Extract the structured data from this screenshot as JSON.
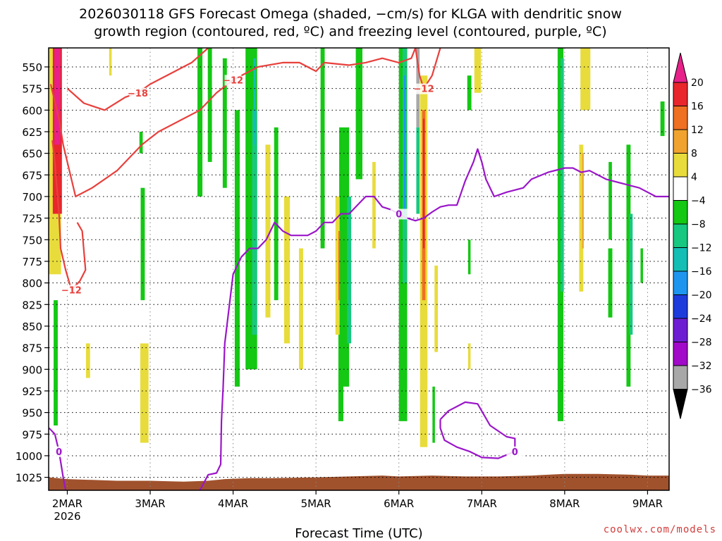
{
  "chart_data": {
    "type": "heatmap",
    "title_line1": "2026030118 GFS Forecast Omega (shaded, −cm/s) for KLGA with dendritic snow",
    "title_line2": "growth region (contoured, red, ºC) and freezing level (contoured, purple, ºC)",
    "xlabel": "Forecast Time (UTC)",
    "watermark": "coolwx.com/models",
    "x_ticks": [
      {
        "label": "2MAR",
        "sublabel": "2026",
        "day": 0
      },
      {
        "label": "3MAR",
        "sublabel": "",
        "day": 1
      },
      {
        "label": "4MAR",
        "sublabel": "",
        "day": 2
      },
      {
        "label": "5MAR",
        "sublabel": "",
        "day": 3
      },
      {
        "label": "6MAR",
        "sublabel": "",
        "day": 4
      },
      {
        "label": "7MAR",
        "sublabel": "",
        "day": 5
      },
      {
        "label": "8MAR",
        "sublabel": "",
        "day": 6
      },
      {
        "label": "9MAR",
        "sublabel": "",
        "day": 7
      }
    ],
    "x_range_days": [
      -0.225,
      7.26
    ],
    "y_ticks": [
      "550",
      "575",
      "600",
      "625",
      "650",
      "675",
      "700",
      "725",
      "750",
      "775",
      "800",
      "825",
      "850",
      "875",
      "900",
      "925",
      "950",
      "975",
      "1000",
      "1025"
    ],
    "y_range_hpa": [
      528,
      1040
    ],
    "colorbar": {
      "ticks": [
        "20",
        "16",
        "12",
        "8",
        "4",
        "−4",
        "−8",
        "−12",
        "−16",
        "−20",
        "−24",
        "−28",
        "−32",
        "−36"
      ],
      "bins": [
        {
          "color": "#e8208a"
        },
        {
          "color": "#e8262c"
        },
        {
          "color": "#ef6f23"
        },
        {
          "color": "#f0a42f"
        },
        {
          "color": "#e8dc3c"
        },
        {
          "color": "#ffffff"
        },
        {
          "color": "#14c814"
        },
        {
          "color": "#18c880"
        },
        {
          "color": "#14beb4"
        },
        {
          "color": "#1e96f0"
        },
        {
          "color": "#1e3cdc"
        },
        {
          "color": "#6e1ed2"
        },
        {
          "color": "#a00ac8"
        },
        {
          "color": "#a8a8a8"
        },
        {
          "color": "#000000"
        }
      ]
    },
    "omega_shading": [
      {
        "day": -0.16,
        "w": 0.17,
        "p0": 528,
        "p1": 790,
        "v": 4
      },
      {
        "day": -0.12,
        "w": 0.11,
        "p0": 528,
        "p1": 720,
        "v": 16
      },
      {
        "day": -0.12,
        "w": 0.07,
        "p0": 528,
        "p1": 640,
        "v": 20
      },
      {
        "day": -0.14,
        "w": 0.05,
        "p0": 820,
        "p1": 965,
        "v": -6
      },
      {
        "day": 0.25,
        "w": 0.05,
        "p0": 870,
        "p1": 910,
        "v": 5
      },
      {
        "day": 0.52,
        "w": 0.03,
        "p0": 528,
        "p1": 560,
        "v": 5
      },
      {
        "day": 0.93,
        "w": 0.1,
        "p0": 870,
        "p1": 985,
        "v": 5
      },
      {
        "day": 0.91,
        "w": 0.05,
        "p0": 690,
        "p1": 820,
        "v": -6
      },
      {
        "day": 0.89,
        "w": 0.04,
        "p0": 625,
        "p1": 650,
        "v": -6
      },
      {
        "day": 1.6,
        "w": 0.06,
        "p0": 528,
        "p1": 700,
        "v": -6
      },
      {
        "day": 1.72,
        "w": 0.05,
        "p0": 528,
        "p1": 660,
        "v": -6
      },
      {
        "day": 1.9,
        "w": 0.05,
        "p0": 540,
        "p1": 690,
        "v": -6
      },
      {
        "day": 2.05,
        "w": 0.06,
        "p0": 600,
        "p1": 920,
        "v": -6
      },
      {
        "day": 2.22,
        "w": 0.14,
        "p0": 528,
        "p1": 900,
        "v": -6
      },
      {
        "day": 2.26,
        "w": 0.06,
        "p0": 600,
        "p1": 860,
        "v": -10
      },
      {
        "day": 2.26,
        "w": 0.03,
        "p0": 540,
        "p1": 640,
        "v": -14
      },
      {
        "day": 2.42,
        "w": 0.06,
        "p0": 640,
        "p1": 840,
        "v": 5
      },
      {
        "day": 2.52,
        "w": 0.05,
        "p0": 620,
        "p1": 820,
        "v": -6
      },
      {
        "day": 2.65,
        "w": 0.07,
        "p0": 700,
        "p1": 870,
        "v": 5
      },
      {
        "day": 2.82,
        "w": 0.05,
        "p0": 760,
        "p1": 900,
        "v": 5
      },
      {
        "day": 3.08,
        "w": 0.05,
        "p0": 528,
        "p1": 760,
        "v": -6
      },
      {
        "day": 3.3,
        "w": 0.06,
        "p0": 700,
        "p1": 960,
        "v": -6
      },
      {
        "day": 3.34,
        "w": 0.12,
        "p0": 620,
        "p1": 920,
        "v": -6
      },
      {
        "day": 3.4,
        "w": 0.05,
        "p0": 700,
        "p1": 870,
        "v": -10
      },
      {
        "day": 3.26,
        "w": 0.05,
        "p0": 700,
        "p1": 860,
        "v": 5
      },
      {
        "day": 3.28,
        "w": 0.02,
        "p0": 740,
        "p1": 820,
        "v": 12
      },
      {
        "day": 3.52,
        "w": 0.08,
        "p0": 528,
        "p1": 680,
        "v": -6
      },
      {
        "day": 3.7,
        "w": 0.04,
        "p0": 660,
        "p1": 760,
        "v": 5
      },
      {
        "day": 4.05,
        "w": 0.1,
        "p0": 528,
        "p1": 960,
        "v": -6
      },
      {
        "day": 4.07,
        "w": 0.05,
        "p0": 528,
        "p1": 800,
        "v": -10
      },
      {
        "day": 4.07,
        "w": 0.02,
        "p0": 560,
        "p1": 720,
        "v": -18
      },
      {
        "day": 4.23,
        "w": 0.04,
        "p0": 528,
        "p1": 620,
        "v": -32
      },
      {
        "day": 4.23,
        "w": 0.04,
        "p0": 620,
        "p1": 720,
        "v": -10
      },
      {
        "day": 4.3,
        "w": 0.09,
        "p0": 560,
        "p1": 990,
        "v": 5
      },
      {
        "day": 4.3,
        "w": 0.04,
        "p0": 600,
        "p1": 820,
        "v": 12
      },
      {
        "day": 4.3,
        "w": 0.02,
        "p0": 610,
        "p1": 760,
        "v": 16
      },
      {
        "day": 4.45,
        "w": 0.04,
        "p0": 780,
        "p1": 880,
        "v": 5
      },
      {
        "day": 4.42,
        "w": 0.03,
        "p0": 920,
        "p1": 985,
        "v": -6
      },
      {
        "day": 4.85,
        "w": 0.05,
        "p0": 560,
        "p1": 600,
        "v": -6
      },
      {
        "day": 4.85,
        "w": 0.03,
        "p0": 870,
        "p1": 900,
        "v": 5
      },
      {
        "day": 4.85,
        "w": 0.03,
        "p0": 750,
        "p1": 790,
        "v": -6
      },
      {
        "day": 4.95,
        "w": 0.08,
        "p0": 528,
        "p1": 580,
        "v": 5
      },
      {
        "day": 5.95,
        "w": 0.07,
        "p0": 528,
        "p1": 960,
        "v": -6
      },
      {
        "day": 5.97,
        "w": 0.04,
        "p0": 540,
        "p1": 810,
        "v": -10
      },
      {
        "day": 6.2,
        "w": 0.05,
        "p0": 640,
        "p1": 810,
        "v": 4
      },
      {
        "day": 6.22,
        "w": 0.02,
        "p0": 650,
        "p1": 760,
        "v": 10
      },
      {
        "day": 6.25,
        "w": 0.12,
        "p0": 528,
        "p1": 600,
        "v": 5
      },
      {
        "day": 6.55,
        "w": 0.04,
        "p0": 660,
        "p1": 750,
        "v": -6
      },
      {
        "day": 6.55,
        "w": 0.05,
        "p0": 760,
        "p1": 840,
        "v": -6
      },
      {
        "day": 6.77,
        "w": 0.05,
        "p0": 640,
        "p1": 920,
        "v": -6
      },
      {
        "day": 6.8,
        "w": 0.04,
        "p0": 720,
        "p1": 860,
        "v": -10
      },
      {
        "day": 6.93,
        "w": 0.03,
        "p0": 760,
        "p1": 800,
        "v": -6
      },
      {
        "day": 7.18,
        "w": 0.05,
        "p0": 590,
        "p1": 630,
        "v": -6
      }
    ],
    "dgz_contours": [
      {
        "label": "−18",
        "points": [
          [
            0.0,
            575
          ],
          [
            0.2,
            592
          ],
          [
            0.45,
            600
          ],
          [
            0.7,
            585
          ],
          [
            0.85,
            580
          ],
          [
            1.0,
            570
          ],
          [
            1.3,
            555
          ],
          [
            1.5,
            545
          ],
          [
            1.7,
            528
          ]
        ]
      },
      {
        "label": "−12",
        "points": [
          [
            -0.2,
            570
          ],
          [
            -0.1,
            610
          ],
          [
            -0.05,
            640
          ],
          [
            0.1,
            700
          ],
          [
            0.3,
            690
          ],
          [
            0.6,
            670
          ],
          [
            0.9,
            640
          ],
          [
            1.1,
            625
          ],
          [
            1.4,
            610
          ],
          [
            1.6,
            600
          ],
          [
            1.8,
            580
          ],
          [
            2.0,
            565
          ],
          [
            2.3,
            550
          ],
          [
            2.6,
            545
          ],
          [
            2.8,
            545
          ],
          [
            3.0,
            555
          ],
          [
            3.1,
            545
          ],
          [
            3.4,
            548
          ],
          [
            3.6,
            545
          ],
          [
            3.8,
            540
          ],
          [
            4.0,
            545
          ],
          [
            4.15,
            540
          ],
          [
            4.2,
            528
          ]
        ]
      },
      {
        "label": "−12",
        "points": [
          [
            4.2,
            528
          ],
          [
            4.25,
            560
          ],
          [
            4.3,
            575
          ],
          [
            4.4,
            560
          ],
          [
            4.5,
            528
          ]
        ]
      },
      {
        "label": "−12",
        "points": [
          [
            -0.18,
            635
          ],
          [
            -0.15,
            660
          ],
          [
            -0.1,
            720
          ],
          [
            -0.08,
            760
          ],
          [
            -0.02,
            785
          ],
          [
            0.05,
            808
          ],
          [
            0.15,
            798
          ],
          [
            0.22,
            785
          ],
          [
            0.18,
            740
          ],
          [
            0.12,
            730
          ]
        ]
      }
    ],
    "freezing_contours": [
      {
        "label": "0",
        "points": [
          [
            -0.22,
            968
          ],
          [
            -0.15,
            975
          ],
          [
            -0.1,
            995
          ],
          [
            -0.05,
            1025
          ],
          [
            -0.02,
            1040
          ]
        ]
      },
      {
        "label": "0",
        "points": [
          [
            1.6,
            1040
          ],
          [
            1.7,
            1022
          ],
          [
            1.8,
            1020
          ],
          [
            1.85,
            1010
          ],
          [
            1.86,
            960
          ],
          [
            1.88,
            920
          ],
          [
            1.9,
            870
          ],
          [
            1.95,
            830
          ],
          [
            2.0,
            790
          ],
          [
            2.1,
            770
          ],
          [
            2.2,
            760
          ],
          [
            2.3,
            760
          ],
          [
            2.4,
            750
          ],
          [
            2.5,
            730
          ],
          [
            2.6,
            740
          ],
          [
            2.7,
            745
          ],
          [
            2.8,
            745
          ],
          [
            2.9,
            745
          ],
          [
            3.0,
            740
          ],
          [
            3.1,
            730
          ],
          [
            3.2,
            730
          ],
          [
            3.3,
            720
          ],
          [
            3.4,
            720
          ],
          [
            3.5,
            710
          ],
          [
            3.6,
            700
          ],
          [
            3.7,
            700
          ],
          [
            3.8,
            712
          ],
          [
            3.9,
            715
          ],
          [
            4.0,
            720
          ],
          [
            4.1,
            725
          ],
          [
            4.2,
            728
          ],
          [
            4.3,
            725
          ],
          [
            4.4,
            718
          ],
          [
            4.5,
            712
          ],
          [
            4.6,
            710
          ],
          [
            4.7,
            710
          ],
          [
            4.8,
            682
          ],
          [
            4.9,
            660
          ],
          [
            4.95,
            645
          ],
          [
            5.0,
            660
          ],
          [
            5.05,
            680
          ],
          [
            5.15,
            700
          ],
          [
            5.3,
            695
          ],
          [
            5.5,
            690
          ],
          [
            5.6,
            680
          ],
          [
            5.8,
            672
          ],
          [
            6.0,
            667
          ],
          [
            6.1,
            667
          ],
          [
            6.2,
            672
          ],
          [
            6.3,
            670
          ],
          [
            6.4,
            675
          ],
          [
            6.5,
            680
          ],
          [
            6.7,
            685
          ],
          [
            6.9,
            690
          ],
          [
            7.1,
            700
          ],
          [
            7.26,
            700
          ]
        ]
      },
      {
        "label": "0",
        "points": [
          [
            4.5,
            958
          ],
          [
            4.6,
            948
          ],
          [
            4.8,
            938
          ],
          [
            4.95,
            940
          ],
          [
            5.1,
            965
          ],
          [
            5.3,
            978
          ],
          [
            5.4,
            980
          ],
          [
            5.4,
            995
          ],
          [
            5.2,
            1003
          ],
          [
            5.0,
            1002
          ],
          [
            4.85,
            995
          ],
          [
            4.7,
            990
          ],
          [
            4.55,
            982
          ],
          [
            4.5,
            968
          ],
          [
            4.5,
            958
          ]
        ]
      }
    ],
    "surface_pressure_hpa": [
      [
        -0.22,
        1025
      ],
      [
        0.0,
        1027
      ],
      [
        0.3,
        1028
      ],
      [
        0.6,
        1029
      ],
      [
        1.0,
        1029
      ],
      [
        1.4,
        1030
      ],
      [
        1.7,
        1029
      ],
      [
        1.9,
        1027
      ],
      [
        2.2,
        1026
      ],
      [
        2.5,
        1026
      ],
      [
        3.0,
        1025
      ],
      [
        3.4,
        1024
      ],
      [
        3.8,
        1023
      ],
      [
        4.0,
        1024
      ],
      [
        4.4,
        1023
      ],
      [
        4.8,
        1024
      ],
      [
        5.2,
        1024
      ],
      [
        5.6,
        1023
      ],
      [
        6.0,
        1021
      ],
      [
        6.4,
        1021
      ],
      [
        6.8,
        1022
      ],
      [
        7.0,
        1023
      ],
      [
        7.26,
        1023
      ]
    ]
  }
}
